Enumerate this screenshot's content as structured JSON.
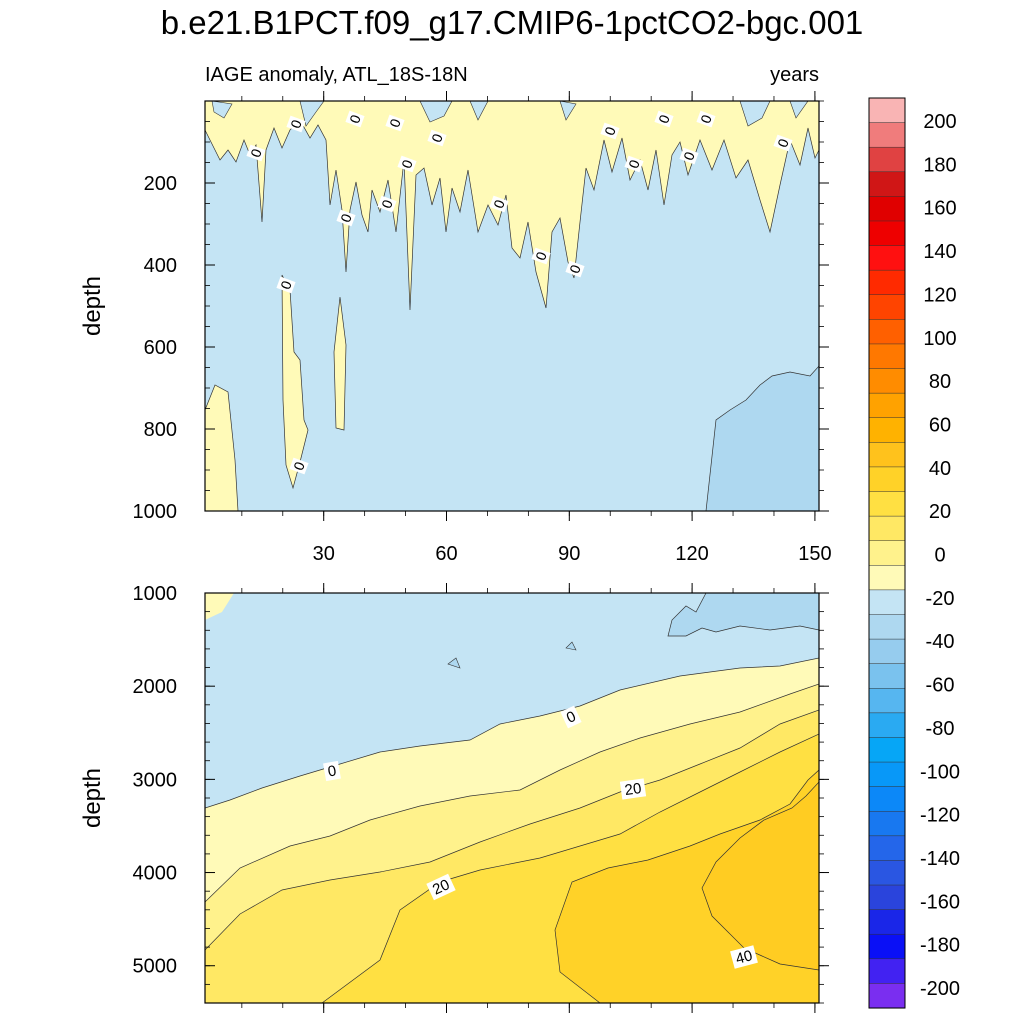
{
  "title": "b.e21.B1PCT.f09_g17.CMIP6-1pctCO2-bgc.001",
  "chart_data": {
    "type": "contour",
    "title": "b.e21.B1PCT.f09_g17.CMIP6-1pctCO2-bgc.001",
    "subtitle_left": "IAGE anomaly, ATL_18S-18N",
    "subtitle_right": "years",
    "xlabel": "",
    "ylabel": "depth",
    "xlim": [
      1,
      151
    ],
    "xticks": [
      "30",
      "60",
      "90",
      "120",
      "150"
    ],
    "panels": [
      {
        "name": "upper",
        "ylim": [
          0,
          1000
        ],
        "yticks": [
          "200",
          "400",
          "600",
          "800",
          "1000"
        ],
        "contour_labels": [
          "0",
          "0",
          "0",
          "0",
          "0",
          "0",
          "0",
          "0",
          "0",
          "0",
          "0",
          "0",
          "0",
          "0",
          "0",
          "0",
          "0",
          "0",
          "0"
        ]
      },
      {
        "name": "lower",
        "ylim": [
          1000,
          5400
        ],
        "yticks": [
          "1000",
          "2000",
          "3000",
          "4000",
          "5000"
        ],
        "contour_labels": [
          "0",
          "0",
          "20",
          "20",
          "40"
        ]
      }
    ],
    "colorbar": {
      "labels": [
        "200",
        "180",
        "160",
        "140",
        "120",
        "100",
        "80",
        "60",
        "40",
        "20",
        "0",
        "-20",
        "-40",
        "-60",
        "-80",
        "-100",
        "-120",
        "-140",
        "-160",
        "-180",
        "-200"
      ],
      "colors": [
        "#f9b4b4",
        "#f07c7c",
        "#e04242",
        "#d01616",
        "#e00000",
        "#ee0000",
        "#ff1010",
        "#ff2a00",
        "#ff4400",
        "#ff6000",
        "#ff7800",
        "#ff8c00",
        "#ffa200",
        "#ffb200",
        "#ffc21c",
        "#ffd228",
        "#ffe042",
        "#ffe864",
        "#fff28c",
        "#fffab8",
        "#c4e4f4",
        "#aed8f0",
        "#96ccee",
        "#7ac2ee",
        "#56b6f0",
        "#2aaaf2",
        "#06a6f6",
        "#0898f8",
        "#0c88f8",
        "#1878f0",
        "#2466ea",
        "#2a56e2",
        "#2a44dc",
        "#1a26e8",
        "#0a10f6",
        "#4222f2",
        "#7a2ef0"
      ]
    }
  }
}
